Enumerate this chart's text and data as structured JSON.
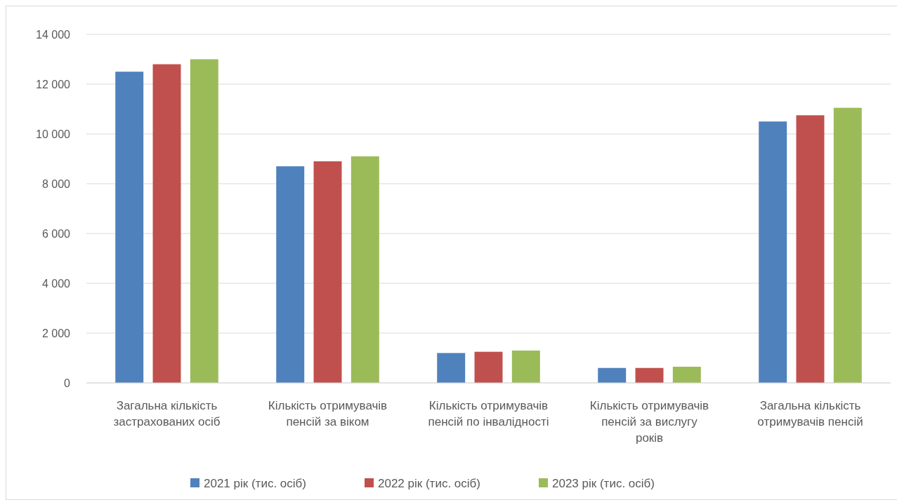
{
  "chart_data": {
    "type": "bar",
    "categories": [
      "Загальна кількість застрахованих осіб",
      "Кількість отримувачів пенсій за віком",
      "Кількість отримувачів пенсій по інвалідності",
      "Кількість отримувачів пенсій за вислугу років",
      "Загальна кількість отримувачів пенсій"
    ],
    "series": [
      {
        "name": "2021 рік (тис. осіб)",
        "color": "#4f81bd",
        "values": [
          12500,
          8700,
          1200,
          600,
          10500
        ]
      },
      {
        "name": "2022 рік (тис. осіб)",
        "color": "#c0504d",
        "values": [
          12800,
          8900,
          1250,
          600,
          10750
        ]
      },
      {
        "name": "2023 рік (тис. осіб)",
        "color": "#9bbb59",
        "values": [
          13000,
          9100,
          1300,
          650,
          11050
        ]
      }
    ],
    "ylim": [
      0,
      14000
    ],
    "yticks": [
      {
        "value": 0,
        "label": "0"
      },
      {
        "value": 2000,
        "label": "2 000"
      },
      {
        "value": 4000,
        "label": "4 000"
      },
      {
        "value": 6000,
        "label": "6 000"
      },
      {
        "value": 8000,
        "label": "8 000"
      },
      {
        "value": 10000,
        "label": "10 000"
      },
      {
        "value": 12000,
        "label": "12 000"
      },
      {
        "value": 14000,
        "label": "14 000"
      }
    ],
    "grid": "y",
    "legend": "bottom"
  }
}
